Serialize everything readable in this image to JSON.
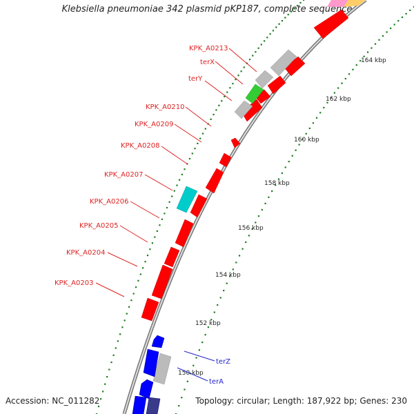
{
  "map": {
    "title": "Klebsiella pneumoniae 342 plasmid pKP187, complete sequence",
    "accession_text": "Accession: NC_011282",
    "summary_text": "Topology: circular; Length: 187,922 bp; Genes: 230",
    "colors": {
      "forward_gene": "#ff0000",
      "reverse_gene": "#0000ff",
      "reverse_other": "#3a3a8a",
      "misc_gray": "#bbbbbb",
      "green_feature": "#33cc33",
      "cyan_feature": "#00cccc",
      "gc_tick": "#1a7a1a",
      "forward_label": "#dd2222",
      "reverse_label": "#2222cc"
    },
    "scale_labels": [
      "150 kbp",
      "152 kbp",
      "154 kbp",
      "156 kbp",
      "158 kbp",
      "160 kbp",
      "162 kbp",
      "164 kbp"
    ],
    "gene_labels_forward": [
      "KPK_A0213",
      "terX",
      "terY",
      "KPK_A0210",
      "KPK_A0209",
      "KPK_A0208",
      "KPK_A0207",
      "KPK_A0206",
      "KPK_A0205",
      "KPK_A0204",
      "KPK_A0203"
    ],
    "gene_labels_reverse": [
      "terZ",
      "terA"
    ]
  }
}
